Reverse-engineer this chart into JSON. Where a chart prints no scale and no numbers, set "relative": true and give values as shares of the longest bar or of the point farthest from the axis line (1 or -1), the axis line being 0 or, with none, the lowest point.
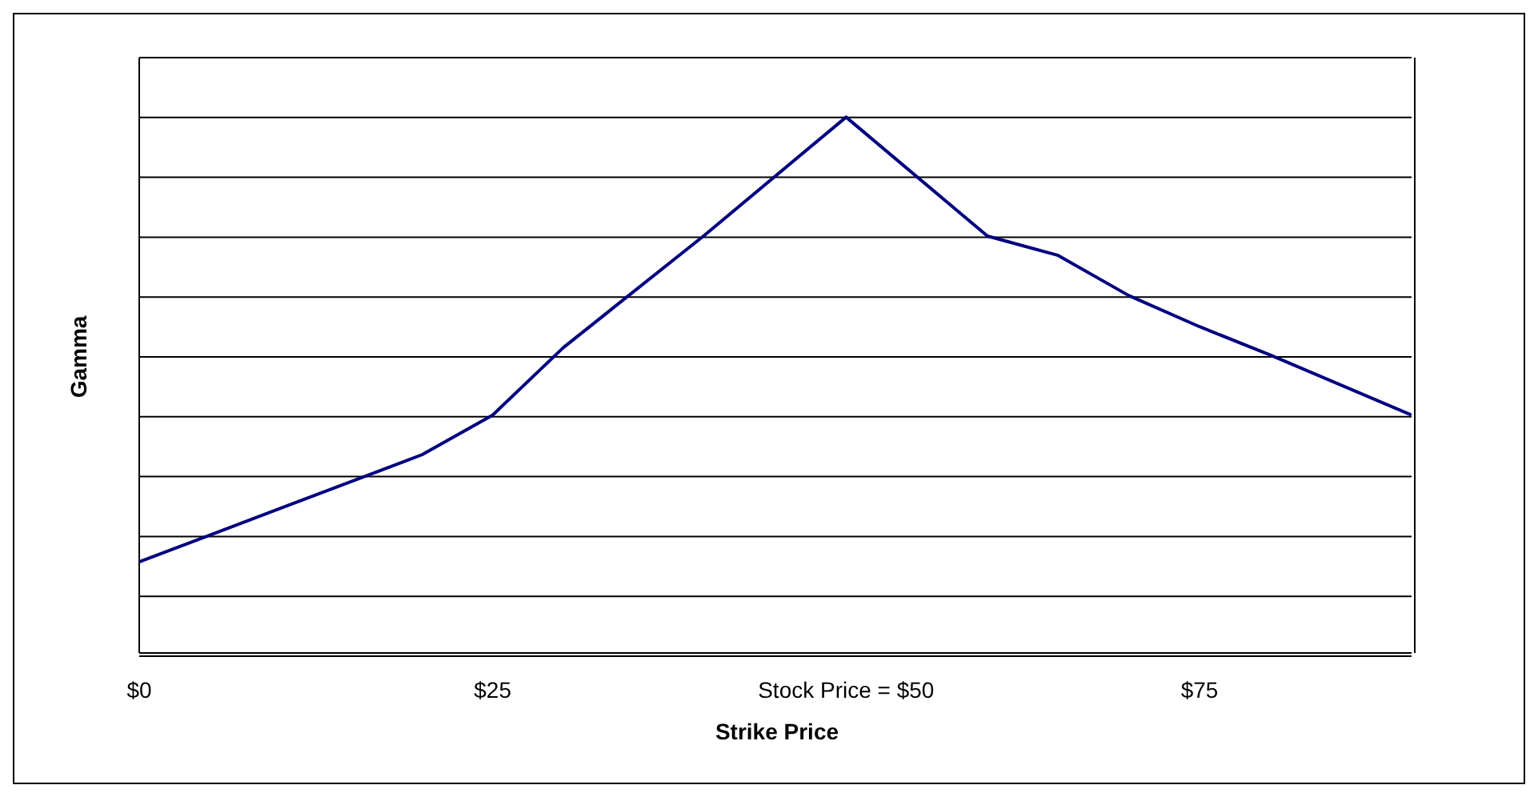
{
  "chart_data": {
    "type": "line",
    "xlabel": "Strike Price",
    "ylabel": "Gamma",
    "relative": true,
    "grid": "y",
    "marker": "none",
    "line_style": "solid",
    "xlim": [
      0,
      90
    ],
    "xticks": [
      {
        "value": 0,
        "label": "$0"
      },
      {
        "value": 25,
        "label": "$25"
      },
      {
        "value": 50,
        "label": "Stock Price = $50"
      },
      {
        "value": 75,
        "label": "$75"
      }
    ],
    "x": [
      0,
      10,
      20,
      25,
      30,
      40,
      50,
      60,
      65,
      70,
      75,
      80,
      90
    ],
    "series": [
      {
        "color": "#000080",
        "values": [
          0.17,
          0.27,
          0.37,
          0.444,
          0.57,
          0.78,
          1,
          0.778,
          0.742,
          0.667,
          0.609,
          0.556,
          0.444
        ]
      }
    ]
  }
}
